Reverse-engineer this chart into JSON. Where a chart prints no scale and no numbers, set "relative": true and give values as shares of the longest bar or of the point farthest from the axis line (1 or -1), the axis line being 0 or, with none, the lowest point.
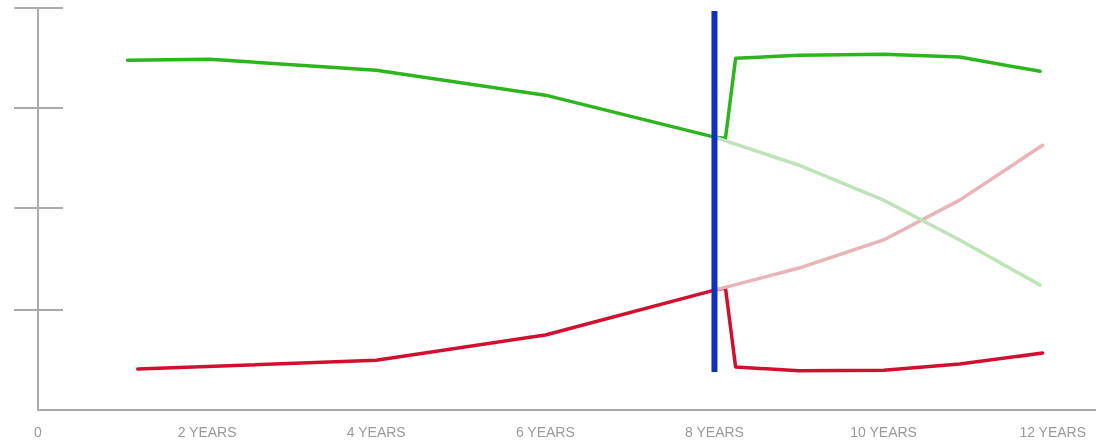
{
  "chart_data": {
    "type": "line",
    "relative": true,
    "legend": false,
    "grid": false,
    "marker": "none",
    "line_style": "solid",
    "xlim": [
      0,
      12.5
    ],
    "xticks": [
      0,
      {
        "value": 2,
        "label": "2 YEARS"
      },
      {
        "value": 4,
        "label": "4 YEARS"
      },
      {
        "value": 6,
        "label": "6 YEARS"
      },
      {
        "value": 8,
        "label": "8 YEARS"
      },
      {
        "value": 10,
        "label": "10 YEARS"
      },
      {
        "value": 12,
        "label": "12 YEARS"
      }
    ],
    "series": [
      {
        "color": "#bfe3b8",
        "x": [
          8,
          9,
          10,
          10.9,
          11.85
        ],
        "values": [
          0.767,
          0.688,
          0.59,
          0.478,
          0.351
        ]
      },
      {
        "color": "#e8b4b8",
        "x": [
          8,
          9,
          10,
          10.9,
          11.88
        ],
        "values": [
          0.337,
          0.399,
          0.478,
          0.59,
          0.744
        ]
      },
      {
        "color": "#2db51d",
        "x": [
          1.06,
          2.03,
          4,
          6,
          8,
          8.13,
          8.25,
          9,
          10,
          10.9,
          11.85
        ],
        "values": [
          0.983,
          0.986,
          0.955,
          0.885,
          0.767,
          0.764,
          0.989,
          0.997,
          1,
          0.992,
          0.952
        ]
      },
      {
        "color": "#d0102e",
        "x": [
          1.18,
          4,
          6,
          8,
          8.13,
          8.25,
          9,
          10,
          10.9,
          11.88
        ],
        "values": [
          0.115,
          0.14,
          0.211,
          0.337,
          0.343,
          0.121,
          0.11,
          0.112,
          0.129,
          0.16
        ]
      }
    ],
    "ref_lines": [
      {
        "axis": "x",
        "value": 8,
        "color": "#1030c0"
      }
    ]
  }
}
